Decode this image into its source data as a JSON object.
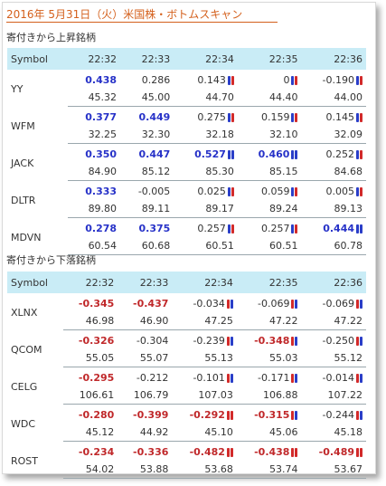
{
  "title": "2016年 5月31日（火）米国株・ボトムスキャン",
  "up_section": {
    "heading": "寄付きから上昇銘柄",
    "columns": [
      "Symbol",
      "22:32",
      "22:33",
      "22:34",
      "22:35",
      "22:36"
    ],
    "rows": [
      {
        "symbol": "YY",
        "changes": [
          "0.438",
          "0.286",
          "0.143",
          "0",
          "-0.190"
        ],
        "prices": [
          "45.32",
          "45.00",
          "44.70",
          "44.40",
          "44.00"
        ]
      },
      {
        "symbol": "WFM",
        "changes": [
          "0.377",
          "0.449",
          "0.275",
          "0.159",
          "0.145"
        ],
        "prices": [
          "32.25",
          "32.30",
          "32.18",
          "32.10",
          "32.09"
        ]
      },
      {
        "symbol": "JACK",
        "changes": [
          "0.350",
          "0.447",
          "0.527",
          "0.460",
          "0.252"
        ],
        "prices": [
          "84.90",
          "85.12",
          "85.30",
          "85.15",
          "84.68"
        ]
      },
      {
        "symbol": "DLTR",
        "changes": [
          "0.333",
          "-0.005",
          "0.025",
          "0.059",
          "0.005"
        ],
        "prices": [
          "89.80",
          "89.11",
          "89.17",
          "89.24",
          "89.13"
        ]
      },
      {
        "symbol": "MDVN",
        "changes": [
          "0.278",
          "0.375",
          "0.257",
          "0.257",
          "0.444"
        ],
        "prices": [
          "60.54",
          "60.68",
          "60.51",
          "60.51",
          "60.78"
        ]
      }
    ]
  },
  "down_section": {
    "heading": "寄付きから下落銘柄",
    "columns": [
      "Symbol",
      "22:32",
      "22:33",
      "22:34",
      "22:35",
      "22:36"
    ],
    "rows": [
      {
        "symbol": "XLNX",
        "changes": [
          "-0.345",
          "-0.437",
          "-0.034",
          "-0.069",
          "-0.069"
        ],
        "prices": [
          "46.98",
          "46.90",
          "47.25",
          "47.22",
          "47.22"
        ]
      },
      {
        "symbol": "QCOM",
        "changes": [
          "-0.326",
          "-0.304",
          "-0.239",
          "-0.348",
          "-0.250"
        ],
        "prices": [
          "55.05",
          "55.07",
          "55.13",
          "55.03",
          "55.12"
        ]
      },
      {
        "symbol": "CELG",
        "changes": [
          "-0.295",
          "-0.212",
          "-0.101",
          "-0.171",
          "-0.014"
        ],
        "prices": [
          "106.61",
          "106.79",
          "107.03",
          "106.88",
          "107.22"
        ]
      },
      {
        "symbol": "WDC",
        "changes": [
          "-0.280",
          "-0.399",
          "-0.292",
          "-0.315",
          "-0.244"
        ],
        "prices": [
          "45.12",
          "44.92",
          "45.10",
          "45.06",
          "45.18"
        ]
      },
      {
        "symbol": "ROST",
        "changes": [
          "-0.234",
          "-0.336",
          "-0.482",
          "-0.438",
          "-0.489"
        ],
        "prices": [
          "54.02",
          "53.88",
          "53.68",
          "53.74",
          "53.67"
        ]
      }
    ]
  },
  "styles": {
    "up": [
      [
        1,
        0,
        0,
        0,
        0
      ],
      [
        1,
        1,
        0,
        0,
        0
      ],
      [
        1,
        1,
        1,
        1,
        0
      ],
      [
        1,
        0,
        0,
        0,
        0
      ],
      [
        1,
        1,
        0,
        0,
        1
      ]
    ],
    "down": [
      [
        1,
        1,
        0,
        0,
        0
      ],
      [
        1,
        0,
        0,
        1,
        0
      ],
      [
        1,
        0,
        0,
        0,
        0
      ],
      [
        1,
        1,
        1,
        1,
        0
      ],
      [
        1,
        1,
        1,
        1,
        1
      ]
    ]
  },
  "bars": {
    "up": [
      [
        "",
        "",
        "br",
        "br",
        "br"
      ],
      [
        "",
        "",
        "br",
        "br",
        "br"
      ],
      [
        "",
        "",
        "bb",
        "bb",
        "br"
      ],
      [
        "",
        "",
        "br",
        "br",
        "br"
      ],
      [
        "",
        "",
        "br",
        "br",
        "bb"
      ]
    ],
    "down": [
      [
        "",
        "",
        "rb",
        "rb",
        "rb"
      ],
      [
        "",
        "",
        "rb",
        "rb",
        "rb"
      ],
      [
        "",
        "",
        "rb",
        "rb",
        "rb"
      ],
      [
        "",
        "",
        "rr",
        "rb",
        "rb"
      ],
      [
        "",
        "",
        "rr",
        "rr",
        "rr"
      ]
    ]
  },
  "colors": {
    "up": "#2732c8",
    "down": "#c0282a",
    "header_bg": "#c9ecf6",
    "title": "#d4601c"
  }
}
